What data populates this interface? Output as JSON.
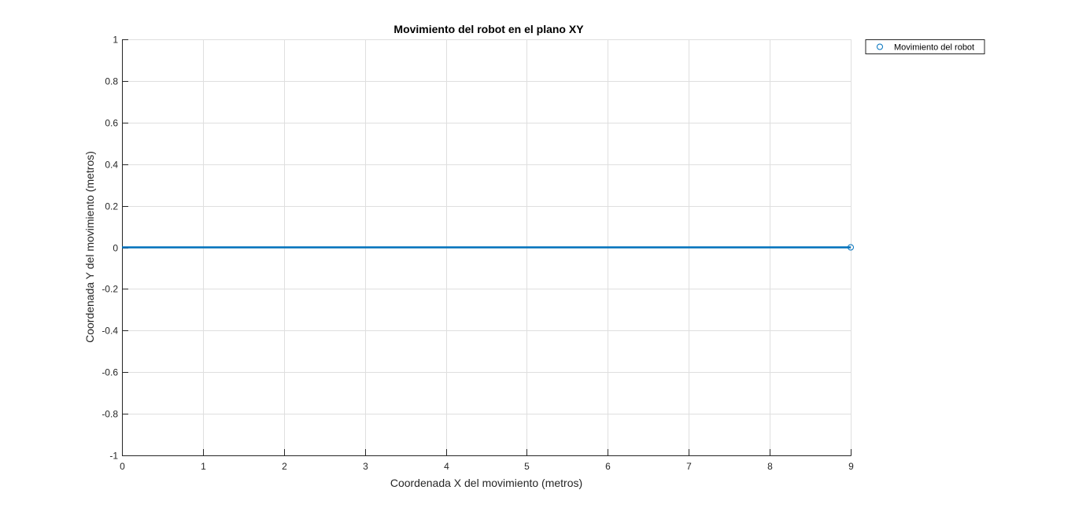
{
  "chart_data": {
    "type": "line",
    "title": "Movimiento del robot en el plano XY",
    "xlabel": "Coordenada X del movimiento (metros)",
    "ylabel": "Coordenada Y del movimiento (metros)",
    "xlim": [
      0,
      9
    ],
    "ylim": [
      -1,
      1
    ],
    "xticks": [
      0,
      1,
      2,
      3,
      4,
      5,
      6,
      7,
      8,
      9
    ],
    "xtick_labels": [
      "0",
      "1",
      "2",
      "3",
      "4",
      "5",
      "6",
      "7",
      "8",
      "9"
    ],
    "yticks": [
      -1,
      -0.8,
      -0.6,
      -0.4,
      -0.2,
      0,
      0.2,
      0.4,
      0.6,
      0.8,
      1
    ],
    "ytick_labels": [
      "-1",
      "-0.8",
      "-0.6",
      "-0.4",
      "-0.2",
      "0",
      "0.2",
      "0.4",
      "0.6",
      "0.8",
      "1"
    ],
    "grid": true,
    "legend_position": "outside-top-right",
    "series": [
      {
        "name": "Movimiento del robot",
        "color": "#0072BD",
        "marker": "circle",
        "x": [
          0,
          9
        ],
        "y": [
          0,
          0
        ],
        "marker_points": [
          {
            "x": 9,
            "y": 0
          }
        ]
      }
    ]
  }
}
